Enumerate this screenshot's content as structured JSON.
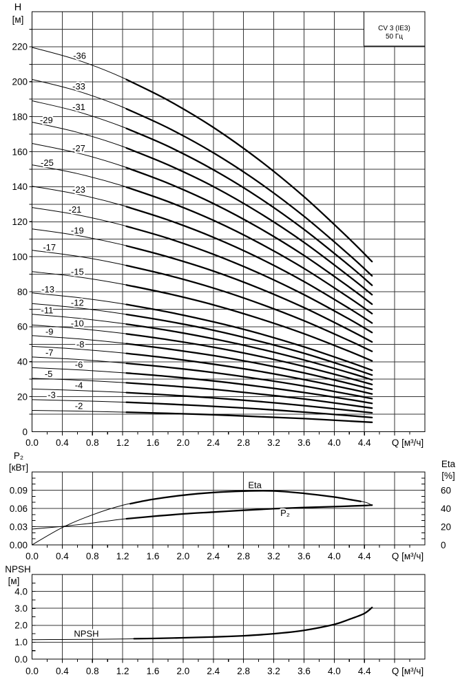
{
  "title_box": {
    "model": "CV 3 (IE3)",
    "frequency": "50 Гц"
  },
  "labels": {
    "main_y_title_1": "H",
    "main_y_title_2": "[м]",
    "main_x_title": "Q [м³/ч]",
    "power_y_title_1": "P₂",
    "power_y_title_2": "[кВт]",
    "power_x_title": "Q [м³/ч]",
    "eta_y_title_1": "Eta",
    "eta_y_title_2": "[%]",
    "npsh_y_title_1": "NPSH",
    "npsh_y_title_2": "[м]",
    "npsh_x_title": "Q [м³/ч]"
  },
  "chart_data": [
    {
      "id": "head",
      "type": "line",
      "title": "CV 3 (IE3) 50 Гц — head curves by number of stages",
      "xlabel": "Q [м³/ч]",
      "ylabel": "H [м]",
      "xlim": [
        0,
        5.2
      ],
      "ylim": [
        0,
        240
      ],
      "x_major": 0.4,
      "x_minor": 0.2,
      "y_grid": 10,
      "grid": true,
      "xticks": [
        [
          0,
          "0.0"
        ],
        [
          0.4,
          "0.4"
        ],
        [
          0.8,
          "0.8"
        ],
        [
          1.2,
          "1.2"
        ],
        [
          1.6,
          "1.6"
        ],
        [
          2,
          "2.0"
        ],
        [
          2.4,
          "2.4"
        ],
        [
          2.8,
          "2.8"
        ],
        [
          3.2,
          "3.2"
        ],
        [
          3.6,
          "3.6"
        ],
        [
          4,
          "4.0"
        ],
        [
          4.4,
          "4.4"
        ]
      ],
      "yticks": [
        [
          0,
          "0"
        ],
        [
          20,
          "20"
        ],
        [
          40,
          "40"
        ],
        [
          60,
          "60"
        ],
        [
          80,
          "80"
        ],
        [
          100,
          "100"
        ],
        [
          120,
          "120"
        ],
        [
          140,
          "140"
        ],
        [
          160,
          "160"
        ],
        [
          180,
          "180"
        ],
        [
          200,
          "200"
        ],
        [
          220,
          "220"
        ]
      ],
      "x_samples": [
        0,
        0.6,
        1.2,
        1.8,
        2.4,
        3.0,
        3.6,
        4.2,
        4.5
      ],
      "label_dy": -3,
      "series": [
        {
          "name": "-36",
          "stages": 36,
          "label_q": 0.63,
          "bold": [
            1.25,
            4.5
          ],
          "values": [
            219.6,
            212.4,
            202.3,
            189.4,
            173.9,
            155.5,
            134.3,
            110.2,
            97.2
          ]
        },
        {
          "name": "-33",
          "stages": 33,
          "label_q": 0.62,
          "bold": [
            1.25,
            4.5
          ],
          "values": [
            201.3,
            194.7,
            185.5,
            173.6,
            159.4,
            142.6,
            123.1,
            101.0,
            89.1
          ]
        },
        {
          "name": "-31",
          "stages": 31,
          "label_q": 0.62,
          "bold": [
            1.25,
            4.5
          ],
          "values": [
            189.1,
            182.9,
            174.2,
            163.1,
            149.7,
            133.9,
            115.6,
            94.9,
            83.7
          ]
        },
        {
          "name": "-29",
          "stages": 29,
          "label_q": 0.19,
          "bold": [
            1.25,
            4.5
          ],
          "values": [
            176.9,
            171.1,
            163.0,
            152.5,
            140.1,
            125.3,
            108.2,
            88.7,
            78.3
          ]
        },
        {
          "name": "-27",
          "stages": 27,
          "label_q": 0.62,
          "bold": [
            1.25,
            4.5
          ],
          "values": [
            164.7,
            159.3,
            151.7,
            142.0,
            130.4,
            116.6,
            100.7,
            82.6,
            72.9
          ]
        },
        {
          "name": "-25",
          "stages": 25,
          "label_q": 0.2,
          "bold": [
            1.25,
            4.5
          ],
          "values": [
            152.5,
            147.5,
            140.5,
            131.5,
            120.8,
            108.0,
            93.3,
            76.5,
            67.5
          ]
        },
        {
          "name": "-23",
          "stages": 23,
          "label_q": 0.62,
          "bold": [
            1.25,
            4.5
          ],
          "values": [
            140.3,
            135.7,
            129.3,
            121.0,
            111.1,
            99.4,
            85.8,
            70.4,
            62.1
          ]
        },
        {
          "name": "-21",
          "stages": 21,
          "label_q": 0.57,
          "bold": [
            1.25,
            4.5
          ],
          "values": [
            128.1,
            123.9,
            118.0,
            110.5,
            101.4,
            90.7,
            78.3,
            64.3,
            56.7
          ]
        },
        {
          "name": "-19",
          "stages": 19,
          "label_q": 0.6,
          "bold": [
            1.25,
            4.5
          ],
          "values": [
            115.9,
            112.1,
            106.8,
            99.9,
            91.8,
            82.1,
            70.9,
            58.1,
            51.3
          ]
        },
        {
          "name": "-17",
          "stages": 17,
          "label_q": 0.23,
          "bold": [
            1.25,
            4.5
          ],
          "values": [
            103.7,
            100.3,
            95.5,
            89.4,
            82.1,
            73.4,
            63.4,
            52.0,
            45.9
          ]
        },
        {
          "name": "-15",
          "stages": 15,
          "label_q": 0.6,
          "bold": [
            1.25,
            4.5
          ],
          "values": [
            91.5,
            88.5,
            84.3,
            78.9,
            72.5,
            64.8,
            56.0,
            45.9,
            40.5
          ]
        },
        {
          "name": "-13",
          "stages": 13,
          "label_q": 0.21,
          "bold": [
            1.25,
            4.5
          ],
          "values": [
            79.3,
            76.7,
            73.1,
            68.4,
            62.8,
            56.2,
            48.5,
            39.8,
            35.1
          ]
        },
        {
          "name": "-12",
          "stages": 12,
          "label_q": 0.6,
          "bold": [
            1.25,
            4.5
          ],
          "values": [
            73.2,
            70.8,
            67.4,
            63.1,
            58.0,
            51.8,
            44.8,
            36.7,
            32.4
          ]
        },
        {
          "name": "-11",
          "stages": 11,
          "label_q": 0.2,
          "bold": [
            1.25,
            4.5
          ],
          "values": [
            67.1,
            64.9,
            61.8,
            57.9,
            53.1,
            47.5,
            41.0,
            33.7,
            29.7
          ]
        },
        {
          "name": "-10",
          "stages": 10,
          "label_q": 0.6,
          "bold": [
            1.25,
            4.5
          ],
          "values": [
            61.0,
            59.0,
            56.2,
            52.6,
            48.3,
            43.2,
            37.3,
            30.6,
            27.0
          ]
        },
        {
          "name": "-9",
          "stages": 9,
          "label_q": 0.23,
          "bold": [
            1.25,
            4.5
          ],
          "values": [
            54.9,
            53.1,
            50.6,
            47.3,
            43.5,
            38.9,
            33.6,
            27.5,
            24.3
          ]
        },
        {
          "name": "-8",
          "stages": 8,
          "label_q": 0.64,
          "bold": [
            1.25,
            4.5
          ],
          "values": [
            48.8,
            47.2,
            45.0,
            42.1,
            38.6,
            34.6,
            29.8,
            24.5,
            21.6
          ]
        },
        {
          "name": "-7",
          "stages": 7,
          "label_q": 0.23,
          "bold": [
            1.25,
            4.5
          ],
          "values": [
            42.7,
            41.3,
            39.3,
            36.8,
            33.8,
            30.2,
            26.1,
            21.4,
            18.9
          ]
        },
        {
          "name": "-6",
          "stages": 6,
          "label_q": 0.62,
          "bold": [
            1.25,
            4.5
          ],
          "values": [
            36.6,
            35.4,
            33.7,
            31.6,
            29.0,
            25.9,
            22.4,
            18.4,
            16.2
          ]
        },
        {
          "name": "-5",
          "stages": 5,
          "label_q": 0.22,
          "bold": [
            1.25,
            4.5
          ],
          "values": [
            30.5,
            29.5,
            28.1,
            26.3,
            24.2,
            21.6,
            18.7,
            15.3,
            13.5
          ]
        },
        {
          "name": "-4",
          "stages": 4,
          "label_q": 0.62,
          "bold": [
            1.25,
            4.5
          ],
          "values": [
            24.4,
            23.6,
            22.5,
            21.0,
            19.3,
            17.3,
            14.9,
            12.2,
            10.8
          ]
        },
        {
          "name": "-3",
          "stages": 3,
          "label_q": 0.26,
          "bold": [
            1.25,
            4.5
          ],
          "values": [
            18.3,
            17.7,
            16.9,
            15.8,
            14.5,
            13.0,
            11.2,
            9.2,
            8.1
          ]
        },
        {
          "name": "-2",
          "stages": 2,
          "label_q": 0.62,
          "bold": [
            1.25,
            4.5
          ],
          "values": [
            12.2,
            11.8,
            11.2,
            10.5,
            9.7,
            8.6,
            7.5,
            6.1,
            5.4
          ]
        }
      ]
    },
    {
      "id": "power_eff",
      "type": "line",
      "title": "Power P₂ and efficiency Eta",
      "xlabel": "Q [м³/ч]",
      "ylabel": "P₂ [кВт]",
      "ylabel_right": "Eta [%]",
      "xlim": [
        0,
        5.2
      ],
      "ylim": [
        0,
        0.12
      ],
      "x_major": 0.4,
      "x_minor": 0.2,
      "y_grid": 0.03,
      "y_minor": 0.01,
      "grid": true,
      "xticks": [
        [
          0,
          "0.0"
        ],
        [
          0.4,
          "0.4"
        ],
        [
          0.8,
          "0.8"
        ],
        [
          1.2,
          "1.2"
        ],
        [
          1.6,
          "1.6"
        ],
        [
          2,
          "2.0"
        ],
        [
          2.4,
          "2.4"
        ],
        [
          2.8,
          "2.8"
        ],
        [
          3.2,
          "3.2"
        ],
        [
          3.6,
          "3.6"
        ],
        [
          4,
          "4.0"
        ],
        [
          4.4,
          "4.4"
        ]
      ],
      "yticks": [
        [
          0,
          "0.00"
        ],
        [
          0.03,
          "0.03"
        ],
        [
          0.06,
          "0.06"
        ],
        [
          0.09,
          "0.09"
        ]
      ],
      "right_axis": {
        "ylim": [
          0,
          80
        ],
        "y_minor": 6.6667,
        "yticks": [
          [
            0,
            "0"
          ],
          [
            20,
            "20"
          ],
          [
            40,
            "40"
          ],
          [
            60,
            "60"
          ]
        ]
      },
      "series": [
        {
          "name": "Eta",
          "axis": "right",
          "label_q": 2.95,
          "label_dy": -4,
          "bold": [
            1.3,
            4.35
          ],
          "x": [
            0,
            0.4,
            0.8,
            1.2,
            1.6,
            2.0,
            2.4,
            2.8,
            3.2,
            3.6,
            4.0,
            4.4,
            4.5
          ],
          "values": [
            0,
            19,
            33,
            43.5,
            50,
            54.5,
            57.5,
            59,
            59.2,
            56.5,
            52.5,
            47,
            43
          ]
        },
        {
          "name": "P₂",
          "axis": "left",
          "label_q": 3.35,
          "label_dy": 11,
          "bold": [
            1.25,
            4.5
          ],
          "x": [
            0,
            0.4,
            0.8,
            1.2,
            1.6,
            2.0,
            2.4,
            2.8,
            3.2,
            3.6,
            4.0,
            4.4,
            4.5
          ],
          "values": [
            0.026,
            0.0305,
            0.036,
            0.0425,
            0.047,
            0.051,
            0.054,
            0.057,
            0.0595,
            0.0615,
            0.063,
            0.0648,
            0.0655
          ]
        }
      ]
    },
    {
      "id": "npsh",
      "type": "line",
      "title": "NPSH curve",
      "xlabel": "Q [м³/ч]",
      "ylabel": "NPSH [м]",
      "xlim": [
        0,
        5.2
      ],
      "ylim": [
        0,
        5
      ],
      "x_major": 0.4,
      "x_minor": 0.2,
      "y_grid": 1,
      "y_minor": 0.5,
      "grid": true,
      "xticks": [
        [
          0,
          "0.0"
        ],
        [
          0.4,
          "0.4"
        ],
        [
          0.8,
          "0.8"
        ],
        [
          1.2,
          "1.2"
        ],
        [
          1.6,
          "1.6"
        ],
        [
          2,
          "2.0"
        ],
        [
          2.4,
          "2.4"
        ],
        [
          2.8,
          "2.8"
        ],
        [
          3.2,
          "3.2"
        ],
        [
          3.6,
          "3.6"
        ],
        [
          4,
          "4.0"
        ],
        [
          4.4,
          "4.4"
        ]
      ],
      "yticks": [
        [
          0,
          "0.0"
        ],
        [
          1,
          "1.0"
        ],
        [
          2,
          "2.0"
        ],
        [
          3,
          "3.0"
        ],
        [
          4,
          "4.0"
        ]
      ],
      "series": [
        {
          "name": "NPSH",
          "axis": "left",
          "label_q": 0.72,
          "label_dy": -4,
          "bold": [
            1.35,
            4.5
          ],
          "x": [
            0,
            0.4,
            0.8,
            1.2,
            1.6,
            2.0,
            2.4,
            2.8,
            3.2,
            3.6,
            4.0,
            4.2,
            4.4,
            4.5
          ],
          "values": [
            1.15,
            1.16,
            1.17,
            1.19,
            1.22,
            1.26,
            1.31,
            1.38,
            1.5,
            1.7,
            2.05,
            2.35,
            2.7,
            3.05
          ]
        }
      ]
    }
  ]
}
